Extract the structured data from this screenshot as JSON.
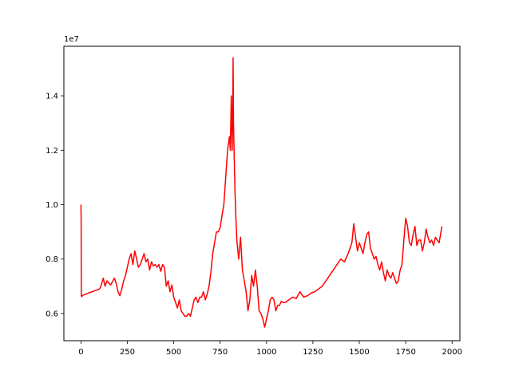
{
  "chart_data": {
    "type": "line",
    "title": "",
    "xlabel": "",
    "ylabel": "",
    "y_offset_label": "1e7",
    "xlim": [
      -92,
      2042
    ],
    "ylim": [
      0.5,
      1.582
    ],
    "x_ticks": [
      0,
      250,
      500,
      750,
      1000,
      1250,
      1500,
      1750,
      2000
    ],
    "x_tick_labels": [
      "0",
      "250",
      "500",
      "750",
      "1000",
      "1250",
      "1500",
      "1750",
      "2000"
    ],
    "y_ticks": [
      0.6,
      0.8,
      1.0,
      1.2,
      1.4
    ],
    "y_tick_labels": [
      "0.6",
      "0.8",
      "1.0",
      "1.2",
      "1.4"
    ],
    "grid": false,
    "legend": "none",
    "series": [
      {
        "color": "#ff0000",
        "x": [
          0,
          1,
          2,
          5,
          10,
          20,
          40,
          60,
          80,
          100,
          110,
          120,
          130,
          140,
          160,
          180,
          190,
          200,
          210,
          220,
          230,
          240,
          250,
          260,
          270,
          280,
          290,
          300,
          310,
          320,
          330,
          340,
          350,
          360,
          370,
          380,
          390,
          400,
          410,
          420,
          430,
          440,
          450,
          460,
          470,
          480,
          490,
          500,
          510,
          520,
          530,
          540,
          550,
          560,
          570,
          580,
          590,
          600,
          610,
          620,
          630,
          640,
          650,
          660,
          670,
          680,
          690,
          700,
          710,
          720,
          730,
          740,
          750,
          760,
          770,
          780,
          790,
          800,
          805,
          810,
          815,
          818,
          820,
          822,
          825,
          830,
          835,
          840,
          850,
          860,
          870,
          880,
          890,
          900,
          910,
          920,
          930,
          940,
          950,
          960,
          970,
          980,
          990,
          1000,
          1010,
          1020,
          1030,
          1040,
          1050,
          1060,
          1070,
          1080,
          1090,
          1100,
          1120,
          1140,
          1160,
          1180,
          1200,
          1220,
          1240,
          1260,
          1280,
          1300,
          1320,
          1340,
          1360,
          1380,
          1400,
          1420,
          1440,
          1460,
          1470,
          1480,
          1490,
          1500,
          1510,
          1520,
          1530,
          1540,
          1550,
          1560,
          1570,
          1580,
          1590,
          1600,
          1610,
          1620,
          1630,
          1640,
          1650,
          1660,
          1670,
          1680,
          1690,
          1700,
          1710,
          1720,
          1730,
          1740,
          1750,
          1760,
          1770,
          1780,
          1790,
          1800,
          1810,
          1820,
          1830,
          1840,
          1850,
          1860,
          1870,
          1880,
          1890,
          1900,
          1910,
          1920,
          1930,
          1940,
          1945
        ],
        "y": [
          1.0,
          0.95,
          0.665,
          0.662,
          0.667,
          0.67,
          0.675,
          0.68,
          0.685,
          0.69,
          0.705,
          0.73,
          0.7,
          0.72,
          0.705,
          0.73,
          0.71,
          0.68,
          0.665,
          0.69,
          0.72,
          0.74,
          0.77,
          0.8,
          0.82,
          0.78,
          0.83,
          0.8,
          0.77,
          0.78,
          0.8,
          0.82,
          0.79,
          0.8,
          0.76,
          0.79,
          0.775,
          0.78,
          0.77,
          0.78,
          0.755,
          0.78,
          0.77,
          0.7,
          0.72,
          0.68,
          0.705,
          0.66,
          0.64,
          0.62,
          0.65,
          0.61,
          0.6,
          0.59,
          0.59,
          0.6,
          0.59,
          0.62,
          0.65,
          0.66,
          0.64,
          0.66,
          0.66,
          0.68,
          0.65,
          0.67,
          0.7,
          0.75,
          0.82,
          0.86,
          0.9,
          0.9,
          0.915,
          0.96,
          1.0,
          1.1,
          1.2,
          1.25,
          1.2,
          1.4,
          1.2,
          1.35,
          1.54,
          1.3,
          1.2,
          1.05,
          0.95,
          0.87,
          0.8,
          0.88,
          0.76,
          0.72,
          0.68,
          0.61,
          0.65,
          0.74,
          0.7,
          0.76,
          0.7,
          0.61,
          0.6,
          0.58,
          0.55,
          0.58,
          0.61,
          0.65,
          0.66,
          0.65,
          0.61,
          0.63,
          0.63,
          0.645,
          0.64,
          0.64,
          0.65,
          0.66,
          0.655,
          0.68,
          0.66,
          0.665,
          0.675,
          0.68,
          0.69,
          0.7,
          0.72,
          0.74,
          0.76,
          0.78,
          0.8,
          0.79,
          0.82,
          0.86,
          0.93,
          0.88,
          0.83,
          0.86,
          0.84,
          0.82,
          0.86,
          0.89,
          0.9,
          0.84,
          0.82,
          0.8,
          0.81,
          0.78,
          0.76,
          0.79,
          0.75,
          0.72,
          0.76,
          0.74,
          0.73,
          0.75,
          0.73,
          0.71,
          0.72,
          0.76,
          0.78,
          0.87,
          0.95,
          0.92,
          0.86,
          0.85,
          0.89,
          0.92,
          0.85,
          0.87,
          0.87,
          0.83,
          0.86,
          0.91,
          0.88,
          0.86,
          0.87,
          0.85,
          0.88,
          0.87,
          0.86,
          0.9,
          0.92
        ]
      }
    ]
  }
}
